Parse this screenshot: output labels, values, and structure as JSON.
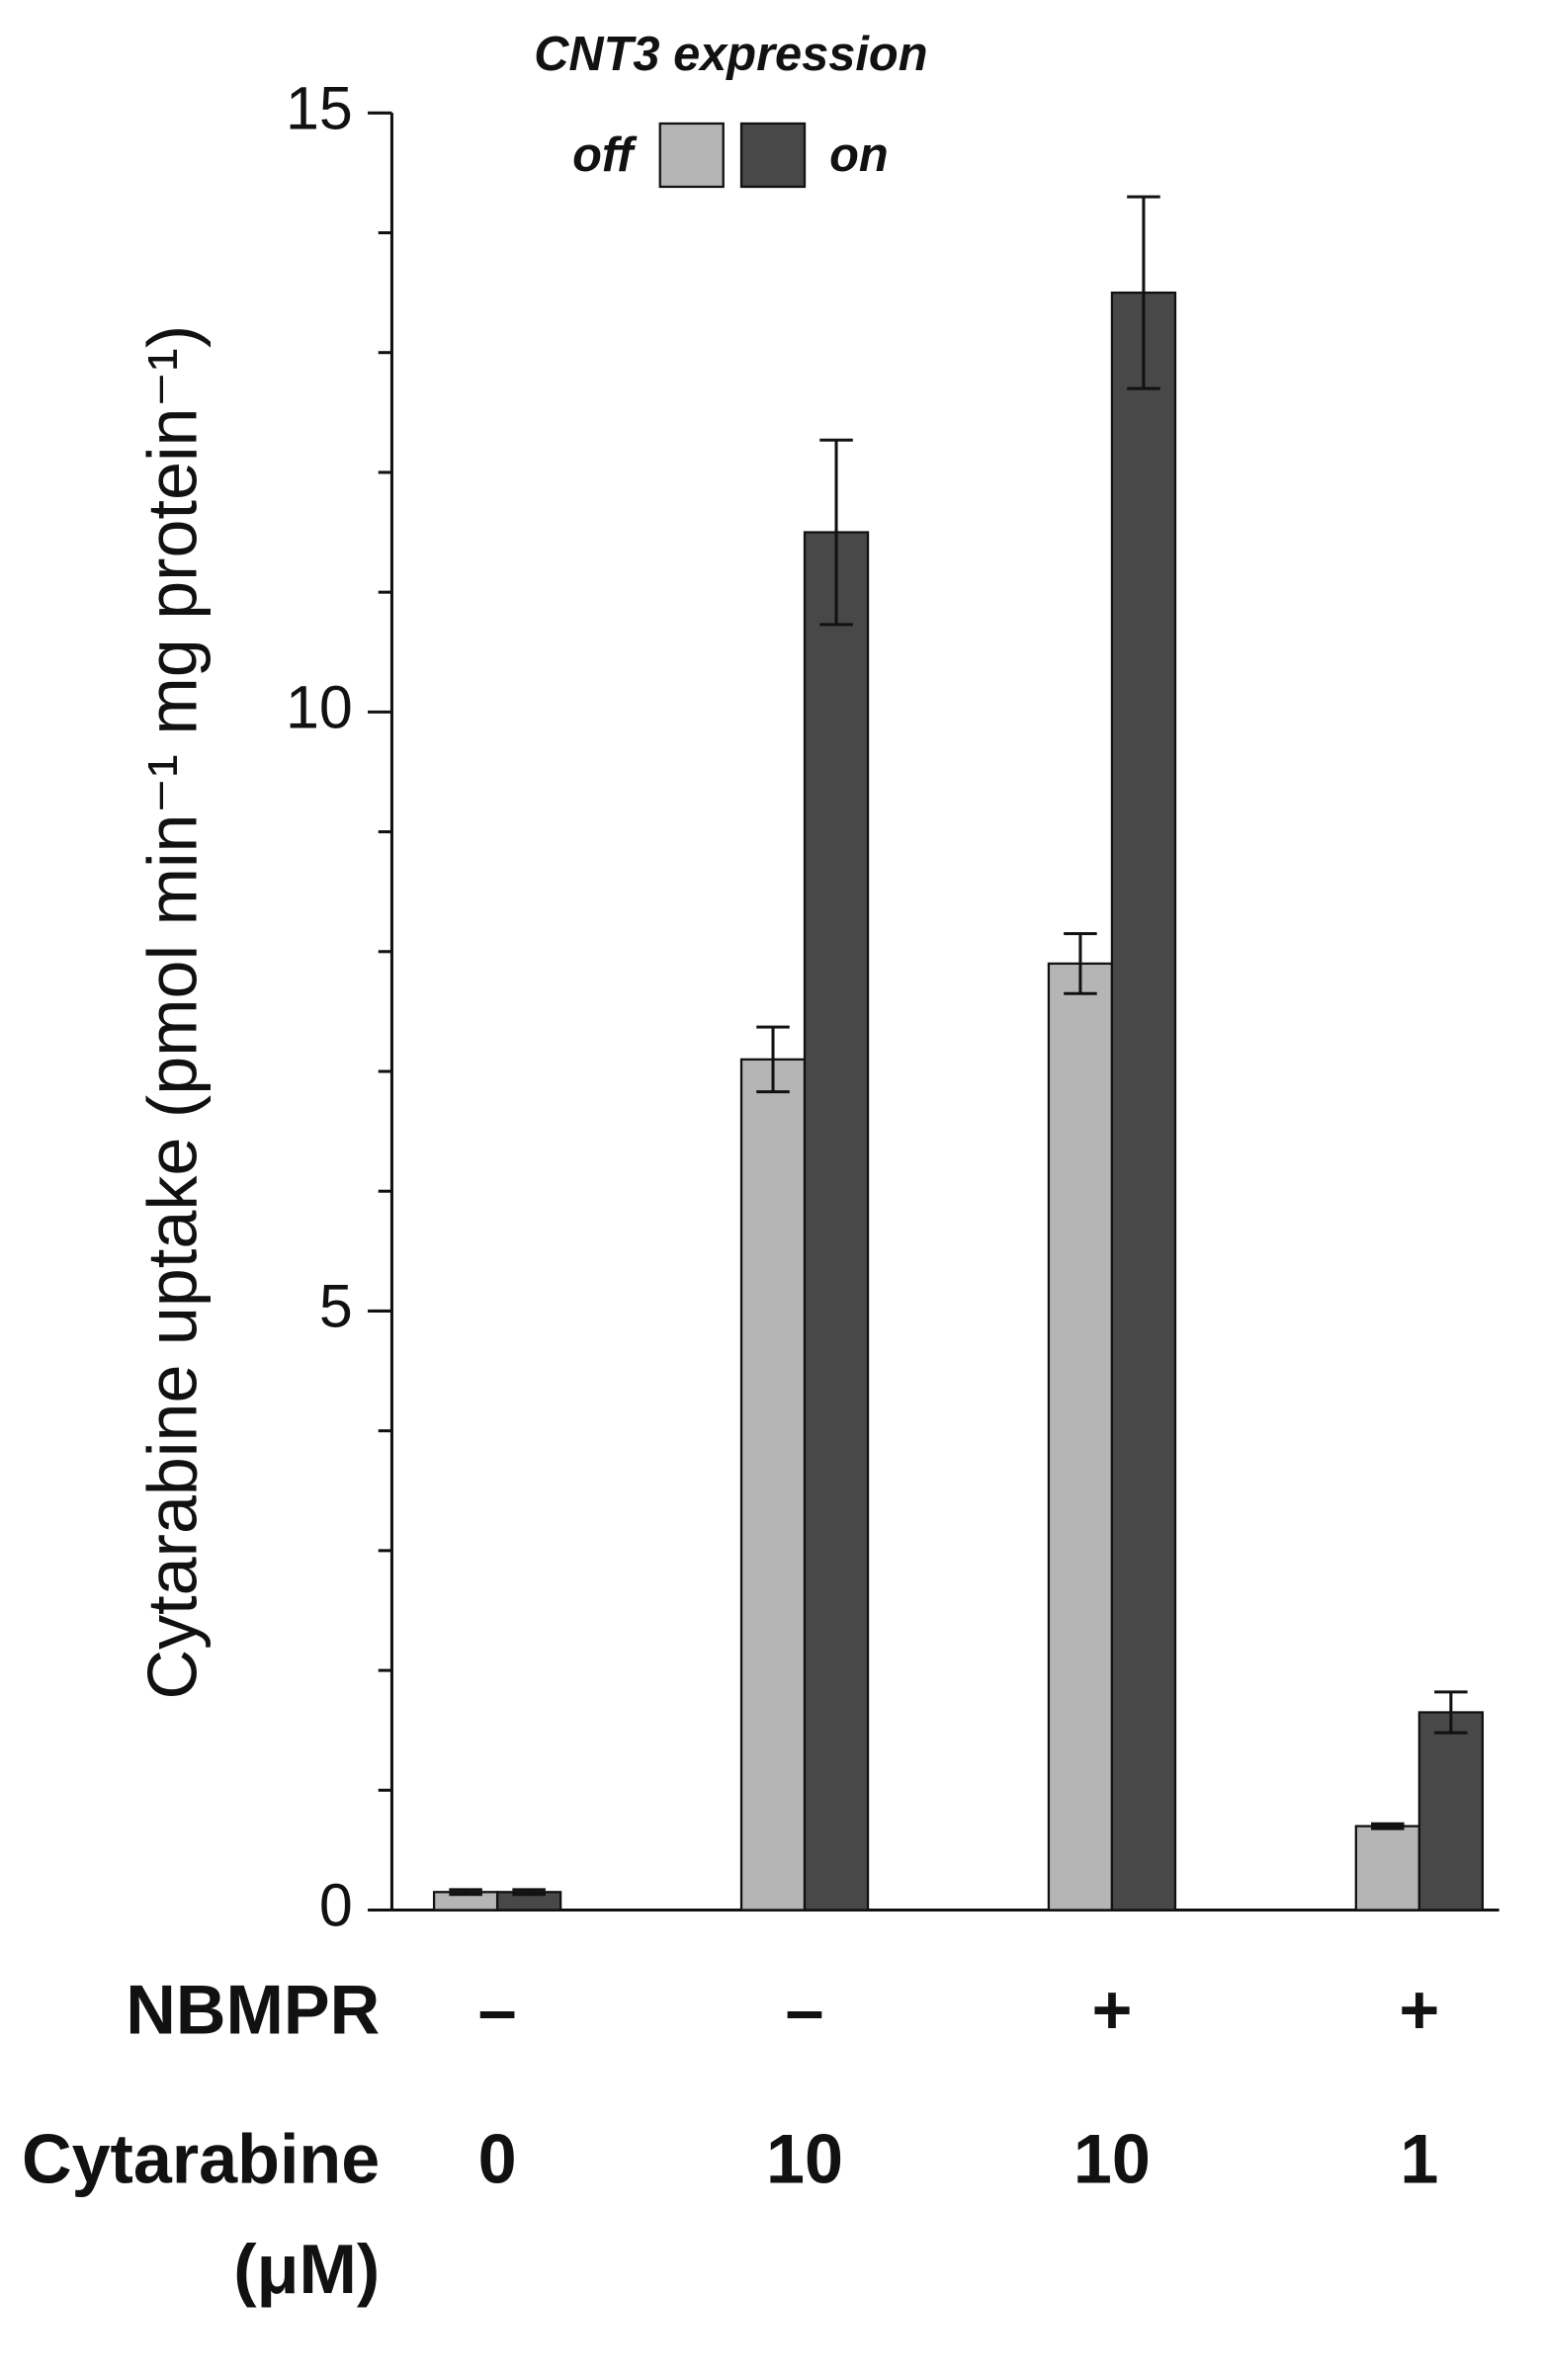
{
  "chart_data": {
    "type": "bar",
    "ylabel": "Cytarabine uptake (pmol min⁻¹ mg protein⁻¹)",
    "legend_title": "CNT3 expression",
    "categories": [
      null,
      null,
      null,
      null
    ],
    "series": [
      {
        "name": "off",
        "color": "#b5b5b5",
        "values": [
          0.15,
          7.1,
          7.9,
          0.7
        ],
        "errors": [
          0.02,
          0.27,
          0.25,
          0.02
        ]
      },
      {
        "name": "on",
        "color": "#484848",
        "values": [
          0.15,
          11.5,
          13.5,
          1.65
        ],
        "errors": [
          0.02,
          0.77,
          0.8,
          0.17
        ]
      }
    ],
    "ylim": [
      0,
      15
    ],
    "yticks": [
      0,
      5,
      10,
      15
    ],
    "yminorticks": [
      1,
      2,
      3,
      4,
      6,
      7,
      8,
      9,
      11,
      12,
      13,
      14
    ],
    "rows": [
      {
        "label": [
          "NBMPR"
        ],
        "values": [
          "–",
          "–",
          "+",
          "+"
        ]
      },
      {
        "label": [
          "Cytarabine",
          "(μM)"
        ],
        "values": [
          "0",
          "10",
          "10",
          "1"
        ]
      }
    ]
  }
}
